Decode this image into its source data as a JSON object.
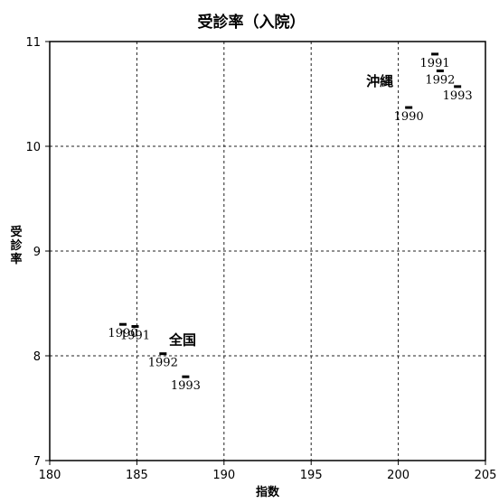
{
  "chart_data": {
    "type": "scatter",
    "title": "受診率（入院）",
    "xlabel": "指数",
    "ylabel": "受診率",
    "xlim": [
      180,
      205
    ],
    "ylim": [
      7,
      11
    ],
    "x_ticks": [
      "180",
      "185",
      "190",
      "195",
      "200",
      "205"
    ],
    "y_ticks": [
      "7",
      "8",
      "9",
      "10",
      "11"
    ],
    "grid": true,
    "groups": [
      {
        "name": "沖縄",
        "points": [
          {
            "label": "1990",
            "x": 200.6,
            "y": 10.37
          },
          {
            "label": "1991",
            "x": 202.1,
            "y": 10.88
          },
          {
            "label": "1992",
            "x": 202.4,
            "y": 10.72
          },
          {
            "label": "1993",
            "x": 203.4,
            "y": 10.57
          }
        ]
      },
      {
        "name": "全国",
        "points": [
          {
            "label": "1990",
            "x": 184.2,
            "y": 8.3
          },
          {
            "label": "1991",
            "x": 184.9,
            "y": 8.28
          },
          {
            "label": "1992",
            "x": 186.5,
            "y": 8.02
          },
          {
            "label": "1993",
            "x": 187.8,
            "y": 7.8
          }
        ]
      }
    ]
  }
}
